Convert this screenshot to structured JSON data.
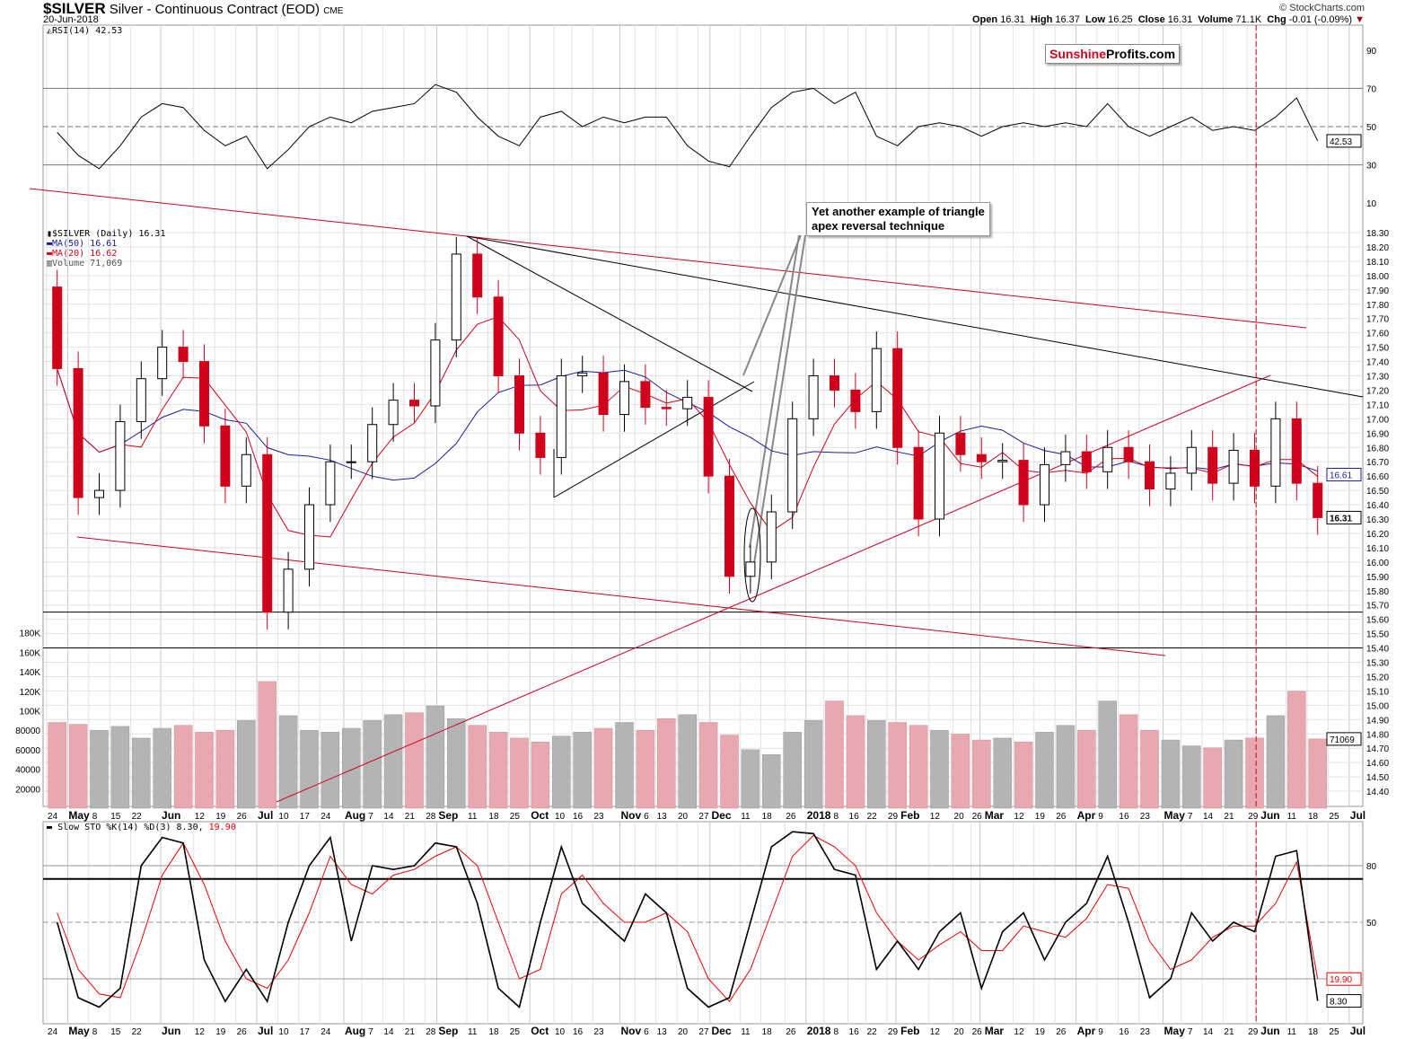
{
  "header": {
    "symbol": "$SILVER",
    "description": "Silver - Continuous Contract (EOD)",
    "exchange": "CME",
    "date": "20-Jun-2018",
    "credit": "© StockCharts.com",
    "open_label": "Open",
    "open": "16.31",
    "high_label": "High",
    "high": "16.37",
    "low_label": "Low",
    "low": "16.25",
    "close_label": "Close",
    "close": "16.31",
    "volume_label": "Volume",
    "volume": "71.1K",
    "chg_label": "Chg",
    "chg": "-0.01 (-0.09%)"
  },
  "logo": {
    "part1": "Sunshine",
    "part2": "Profits.com"
  },
  "annotation": {
    "line1": "Yet another example of triangle",
    "line2": "apex reversal technique"
  },
  "legend": {
    "rsi": "RSI(14) 42.53",
    "price": "$SILVER (Daily) 16.31",
    "ma50": "MA(50) 16.61",
    "ma20": "MA(20) 16.62",
    "volume": "Volume 71,069",
    "sto_prefix": "Slow STO %K(14) %D(3) 8.30,",
    "sto_d": "19.90"
  },
  "colors": {
    "up": "#000000",
    "down": "#d0021b",
    "ma50": "#1a1aa0",
    "ma20": "#d0021b",
    "vol_up": "#b4b4b4",
    "vol_down": "#e8a8b0",
    "grid": "#e2e2e2",
    "rsi_over": "#4f7a4f",
    "rsi_under": "#8b5a5a"
  },
  "chart_data": {
    "type": "candlestick",
    "note_series_resolution": "weekly",
    "x": [
      "2017-04-24",
      "2017-05-01",
      "2017-05-08",
      "2017-05-15",
      "2017-05-22",
      "2017-05-29",
      "2017-06-05",
      "2017-06-12",
      "2017-06-19",
      "2017-06-26",
      "2017-07-03",
      "2017-07-10",
      "2017-07-17",
      "2017-07-24",
      "2017-07-31",
      "2017-08-07",
      "2017-08-14",
      "2017-08-21",
      "2017-08-28",
      "2017-09-04",
      "2017-09-11",
      "2017-09-18",
      "2017-09-25",
      "2017-10-02",
      "2017-10-09",
      "2017-10-16",
      "2017-10-23",
      "2017-10-30",
      "2017-11-06",
      "2017-11-13",
      "2017-11-20",
      "2017-11-27",
      "2017-12-04",
      "2017-12-11",
      "2017-12-18",
      "2017-12-25",
      "2018-01-01",
      "2018-01-08",
      "2018-01-15",
      "2018-01-22",
      "2018-01-29",
      "2018-02-05",
      "2018-02-12",
      "2018-02-19",
      "2018-02-26",
      "2018-03-05",
      "2018-03-12",
      "2018-03-19",
      "2018-03-26",
      "2018-04-02",
      "2018-04-09",
      "2018-04-16",
      "2018-04-23",
      "2018-04-30",
      "2018-05-07",
      "2018-05-14",
      "2018-05-21",
      "2018-05-28",
      "2018-06-04",
      "2018-06-11",
      "2018-06-18"
    ],
    "first_open": 17.92,
    "close": [
      17.35,
      16.45,
      16.5,
      16.98,
      17.28,
      17.5,
      17.4,
      16.95,
      16.53,
      16.75,
      15.65,
      15.95,
      16.4,
      16.7,
      16.7,
      16.96,
      17.13,
      17.09,
      17.55,
      18.15,
      17.85,
      17.3,
      16.9,
      16.73,
      17.3,
      17.32,
      17.03,
      17.26,
      17.08,
      17.07,
      17.15,
      16.6,
      15.9,
      16.0,
      16.35,
      17.0,
      17.3,
      17.2,
      17.05,
      17.49,
      16.8,
      16.3,
      16.9,
      16.75,
      16.7,
      16.71,
      16.4,
      16.68,
      16.77,
      16.63,
      16.8,
      16.7,
      16.51,
      16.62,
      16.8,
      16.55,
      16.78,
      16.53,
      17.0,
      16.55,
      16.31
    ],
    "volume": [
      88000,
      86000,
      80000,
      84000,
      72000,
      82000,
      85000,
      78000,
      80000,
      90000,
      130000,
      95000,
      80000,
      78000,
      82000,
      90000,
      96000,
      98000,
      105000,
      92000,
      85000,
      78000,
      72000,
      68000,
      74000,
      78000,
      82000,
      88000,
      80000,
      92000,
      96000,
      88000,
      75000,
      60000,
      55000,
      78000,
      90000,
      110000,
      95000,
      90000,
      88000,
      85000,
      80000,
      76000,
      70000,
      72000,
      68000,
      78000,
      85000,
      80000,
      110000,
      96000,
      80000,
      70000,
      64000,
      62000,
      70000,
      72000,
      95000,
      120000,
      71069
    ],
    "rsi": [
      47,
      35,
      28,
      40,
      55,
      62,
      60,
      48,
      40,
      45,
      28,
      38,
      50,
      55,
      52,
      58,
      60,
      62,
      72,
      68,
      55,
      45,
      40,
      55,
      58,
      50,
      55,
      52,
      55,
      55,
      40,
      32,
      29,
      45,
      60,
      68,
      70,
      62,
      68,
      45,
      40,
      50,
      52,
      50,
      45,
      50,
      52,
      50,
      52,
      50,
      62,
      50,
      45,
      50,
      55,
      48,
      50,
      48,
      55,
      65,
      42.53
    ],
    "sto_k": [
      50,
      10,
      5,
      15,
      80,
      95,
      92,
      30,
      8,
      25,
      8,
      50,
      80,
      95,
      40,
      80,
      78,
      80,
      92,
      90,
      60,
      15,
      5,
      50,
      90,
      60,
      50,
      40,
      65,
      55,
      15,
      5,
      10,
      50,
      90,
      98,
      97,
      78,
      75,
      25,
      40,
      25,
      45,
      55,
      15,
      45,
      55,
      30,
      50,
      60,
      85,
      50,
      10,
      20,
      55,
      40,
      50,
      45,
      85,
      88,
      8.3
    ],
    "sto_d": [
      55,
      25,
      12,
      10,
      40,
      75,
      92,
      70,
      40,
      20,
      15,
      30,
      55,
      85,
      70,
      65,
      75,
      78,
      85,
      90,
      80,
      50,
      20,
      25,
      65,
      75,
      60,
      50,
      50,
      55,
      45,
      20,
      8,
      25,
      55,
      85,
      96,
      90,
      80,
      55,
      40,
      30,
      38,
      45,
      35,
      35,
      48,
      45,
      42,
      52,
      70,
      68,
      40,
      25,
      30,
      42,
      48,
      48,
      60,
      82,
      19.9
    ],
    "price_ticks": [
      "18.30",
      "18.20",
      "18.10",
      "18.00",
      "17.90",
      "17.80",
      "17.70",
      "17.60",
      "17.50",
      "17.40",
      "17.30",
      "17.20",
      "17.10",
      "17.00",
      "16.90",
      "16.80",
      "16.70",
      "16.60",
      "16.50",
      "16.40",
      "16.30",
      "16.20",
      "16.10",
      "16.00",
      "15.90",
      "15.80",
      "15.70",
      "15.60",
      "15.50",
      "15.40",
      "15.30",
      "15.20",
      "15.10",
      "15.00",
      "14.90",
      "14.80",
      "14.70",
      "14.60",
      "14.50",
      "14.40"
    ],
    "volume_ticks": [
      "180K",
      "160K",
      "140K",
      "120K",
      "100K",
      "80000",
      "60000",
      "40000",
      "20000"
    ],
    "rsi_ticks": [
      "90",
      "70",
      "50",
      "30",
      "10"
    ],
    "sto_ticks": [
      "80",
      "50"
    ],
    "badges": {
      "ma50": "16.61",
      "close": "16.31",
      "volume": "71069",
      "rsi": "42.53",
      "sto_d": "19.90",
      "sto_k": "8.30"
    },
    "support_levels": [
      15.65,
      15.4
    ],
    "marker_date": "2018-06-01",
    "x_ticks": [
      {
        "d": "2017-04-24",
        "t": "24"
      },
      {
        "d": "2017-05-01",
        "t": "May",
        "b": 1
      },
      {
        "d": "2017-05-08",
        "t": "8"
      },
      {
        "d": "2017-05-15",
        "t": "15"
      },
      {
        "d": "2017-05-22",
        "t": "22"
      },
      {
        "d": "2017-06-01",
        "t": "Jun",
        "b": 1
      },
      {
        "d": "2017-06-12",
        "t": "12"
      },
      {
        "d": "2017-06-19",
        "t": "19"
      },
      {
        "d": "2017-06-26",
        "t": "26"
      },
      {
        "d": "2017-07-03",
        "t": "Jul",
        "b": 1
      },
      {
        "d": "2017-07-10",
        "t": "10"
      },
      {
        "d": "2017-07-17",
        "t": "17"
      },
      {
        "d": "2017-07-24",
        "t": "24"
      },
      {
        "d": "2017-08-01",
        "t": "Aug",
        "b": 1
      },
      {
        "d": "2017-08-07",
        "t": "7"
      },
      {
        "d": "2017-08-14",
        "t": "14"
      },
      {
        "d": "2017-08-21",
        "t": "21"
      },
      {
        "d": "2017-08-28",
        "t": "28"
      },
      {
        "d": "2017-09-01",
        "t": "Sep",
        "b": 1
      },
      {
        "d": "2017-09-11",
        "t": "11"
      },
      {
        "d": "2017-09-18",
        "t": "18"
      },
      {
        "d": "2017-09-25",
        "t": "25"
      },
      {
        "d": "2017-10-02",
        "t": "Oct",
        "b": 1
      },
      {
        "d": "2017-10-10",
        "t": "10"
      },
      {
        "d": "2017-10-16",
        "t": "16"
      },
      {
        "d": "2017-10-23",
        "t": "23"
      },
      {
        "d": "2017-11-01",
        "t": "Nov",
        "b": 1
      },
      {
        "d": "2017-11-06",
        "t": "6"
      },
      {
        "d": "2017-11-13",
        "t": "13"
      },
      {
        "d": "2017-11-20",
        "t": "20"
      },
      {
        "d": "2017-11-27",
        "t": "27"
      },
      {
        "d": "2017-12-01",
        "t": "Dec",
        "b": 1
      },
      {
        "d": "2017-12-11",
        "t": "11"
      },
      {
        "d": "2017-12-18",
        "t": "18"
      },
      {
        "d": "2017-12-26",
        "t": "26"
      },
      {
        "d": "2018-01-02",
        "t": "2018",
        "b": 1
      },
      {
        "d": "2018-01-08",
        "t": "8"
      },
      {
        "d": "2018-01-16",
        "t": "16"
      },
      {
        "d": "2018-01-22",
        "t": "22"
      },
      {
        "d": "2018-01-29",
        "t": "29"
      },
      {
        "d": "2018-02-01",
        "t": "Feb",
        "b": 1
      },
      {
        "d": "2018-02-12",
        "t": "12"
      },
      {
        "d": "2018-02-20",
        "t": "20"
      },
      {
        "d": "2018-02-26",
        "t": "26"
      },
      {
        "d": "2018-03-01",
        "t": "Mar",
        "b": 1
      },
      {
        "d": "2018-03-12",
        "t": "12"
      },
      {
        "d": "2018-03-19",
        "t": "19"
      },
      {
        "d": "2018-03-26",
        "t": "26"
      },
      {
        "d": "2018-04-02",
        "t": "Apr",
        "b": 1
      },
      {
        "d": "2018-04-09",
        "t": "9"
      },
      {
        "d": "2018-04-16",
        "t": "16"
      },
      {
        "d": "2018-04-23",
        "t": "23"
      },
      {
        "d": "2018-05-01",
        "t": "May",
        "b": 1
      },
      {
        "d": "2018-05-07",
        "t": "7"
      },
      {
        "d": "2018-05-14",
        "t": "14"
      },
      {
        "d": "2018-05-21",
        "t": "21"
      },
      {
        "d": "2018-05-29",
        "t": "29"
      },
      {
        "d": "2018-06-01",
        "t": "Jun",
        "b": 1
      },
      {
        "d": "2018-06-11",
        "t": "11"
      },
      {
        "d": "2018-06-18",
        "t": "18"
      },
      {
        "d": "2018-06-25",
        "t": "25"
      },
      {
        "d": "2018-07-02",
        "t": "Jul",
        "b": 1
      }
    ]
  }
}
